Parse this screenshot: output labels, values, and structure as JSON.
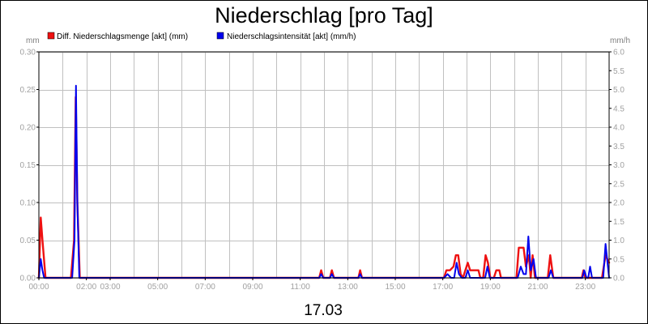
{
  "chart_data": {
    "type": "line",
    "title": "Niederschlag [pro Tag]",
    "date_label": "17.03",
    "y_left_unit": "mm",
    "y_right_unit": "mm/h",
    "ylim_left": [
      0,
      0.3
    ],
    "ylim_right": [
      0,
      6.0
    ],
    "y_left_ticks": [
      "0.00",
      "0.05",
      "0.10",
      "0.15",
      "0.20",
      "0.25",
      "0.30"
    ],
    "y_right_ticks": [
      "0.0",
      "0.5",
      "1.0",
      "1.5",
      "2.0",
      "2.5",
      "3.0",
      "3.5",
      "4.0",
      "4.5",
      "5.0",
      "5.5",
      "6.0"
    ],
    "x_ticks": [
      {
        "hour": 0,
        "label": "00:00"
      },
      {
        "hour": 2,
        "label": "02:00"
      },
      {
        "hour": 3,
        "label": "03:00"
      },
      {
        "hour": 5,
        "label": "05:00"
      },
      {
        "hour": 7,
        "label": "07:00"
      },
      {
        "hour": 9,
        "label": "09:00"
      },
      {
        "hour": 11,
        "label": "11:00"
      },
      {
        "hour": 13,
        "label": "13:00"
      },
      {
        "hour": 15,
        "label": "15:00"
      },
      {
        "hour": 17,
        "label": "17:00"
      },
      {
        "hour": 19,
        "label": "19:00"
      },
      {
        "hour": 21,
        "label": "21:00"
      },
      {
        "hour": 23,
        "label": "23:00"
      }
    ],
    "x_range_hours": [
      0,
      24
    ],
    "grid": true,
    "legend_position": "top",
    "series": [
      {
        "name": "Diff. Niederschlagsmenge [akt] (mm)",
        "color": "#ee1111",
        "axis": "left",
        "points": [
          [
            0.0,
            0.0
          ],
          [
            0.08,
            0.08
          ],
          [
            0.15,
            0.05
          ],
          [
            0.28,
            0.0
          ],
          [
            1.35,
            0.0
          ],
          [
            1.48,
            0.05
          ],
          [
            1.55,
            0.24
          ],
          [
            1.62,
            0.1
          ],
          [
            1.72,
            0.0
          ],
          [
            11.8,
            0.0
          ],
          [
            11.88,
            0.01
          ],
          [
            11.97,
            0.0
          ],
          [
            12.25,
            0.0
          ],
          [
            12.33,
            0.01
          ],
          [
            12.42,
            0.0
          ],
          [
            13.45,
            0.0
          ],
          [
            13.52,
            0.01
          ],
          [
            13.6,
            0.0
          ],
          [
            17.05,
            0.0
          ],
          [
            17.15,
            0.01
          ],
          [
            17.3,
            0.01
          ],
          [
            17.45,
            0.015
          ],
          [
            17.55,
            0.03
          ],
          [
            17.65,
            0.03
          ],
          [
            17.75,
            0.005
          ],
          [
            17.85,
            0.0
          ],
          [
            17.95,
            0.01
          ],
          [
            18.05,
            0.02
          ],
          [
            18.15,
            0.01
          ],
          [
            18.28,
            0.01
          ],
          [
            18.4,
            0.01
          ],
          [
            18.5,
            0.01
          ],
          [
            18.58,
            0.0
          ],
          [
            18.7,
            0.0
          ],
          [
            18.8,
            0.03
          ],
          [
            18.9,
            0.02
          ],
          [
            19.0,
            0.0
          ],
          [
            19.15,
            0.0
          ],
          [
            19.25,
            0.01
          ],
          [
            19.38,
            0.01
          ],
          [
            19.45,
            0.0
          ],
          [
            20.1,
            0.0
          ],
          [
            20.2,
            0.04
          ],
          [
            20.4,
            0.04
          ],
          [
            20.5,
            0.015
          ],
          [
            20.62,
            0.03
          ],
          [
            20.7,
            0.0
          ],
          [
            20.78,
            0.03
          ],
          [
            20.88,
            0.0
          ],
          [
            21.0,
            0.0
          ],
          [
            21.42,
            0.0
          ],
          [
            21.52,
            0.03
          ],
          [
            21.65,
            0.0
          ],
          [
            22.85,
            0.0
          ],
          [
            22.92,
            0.01
          ],
          [
            23.0,
            0.0
          ],
          [
            23.7,
            0.0
          ],
          [
            23.85,
            0.03
          ],
          [
            24.0,
            0.02
          ]
        ]
      },
      {
        "name": "Niederschlagsintensität [akt] (mm/h)",
        "color": "#0000ee",
        "axis": "right",
        "points": [
          [
            0.0,
            0.0
          ],
          [
            0.08,
            0.5
          ],
          [
            0.15,
            0.2
          ],
          [
            0.22,
            0.0
          ],
          [
            1.4,
            0.0
          ],
          [
            1.5,
            1.0
          ],
          [
            1.56,
            5.1
          ],
          [
            1.62,
            2.0
          ],
          [
            1.7,
            0.0
          ],
          [
            11.8,
            0.0
          ],
          [
            11.88,
            0.1
          ],
          [
            11.97,
            0.0
          ],
          [
            12.25,
            0.0
          ],
          [
            12.33,
            0.1
          ],
          [
            12.42,
            0.0
          ],
          [
            13.45,
            0.0
          ],
          [
            13.52,
            0.1
          ],
          [
            13.6,
            0.0
          ],
          [
            17.05,
            0.0
          ],
          [
            17.2,
            0.1
          ],
          [
            17.35,
            0.0
          ],
          [
            17.48,
            0.0
          ],
          [
            17.58,
            0.4
          ],
          [
            17.68,
            0.1
          ],
          [
            17.8,
            0.0
          ],
          [
            17.95,
            0.0
          ],
          [
            18.05,
            0.2
          ],
          [
            18.15,
            0.0
          ],
          [
            18.78,
            0.0
          ],
          [
            18.88,
            0.3
          ],
          [
            18.98,
            0.0
          ],
          [
            20.15,
            0.0
          ],
          [
            20.28,
            0.3
          ],
          [
            20.4,
            0.1
          ],
          [
            20.5,
            0.1
          ],
          [
            20.6,
            1.1
          ],
          [
            20.7,
            0.2
          ],
          [
            20.82,
            0.5
          ],
          [
            20.92,
            0.0
          ],
          [
            21.45,
            0.0
          ],
          [
            21.55,
            0.2
          ],
          [
            21.65,
            0.0
          ],
          [
            22.88,
            0.0
          ],
          [
            22.95,
            0.2
          ],
          [
            23.05,
            0.0
          ],
          [
            23.12,
            0.0
          ],
          [
            23.2,
            0.3
          ],
          [
            23.28,
            0.0
          ],
          [
            23.75,
            0.0
          ],
          [
            23.85,
            0.9
          ],
          [
            23.95,
            0.3
          ],
          [
            24.0,
            0.0
          ]
        ]
      }
    ]
  }
}
